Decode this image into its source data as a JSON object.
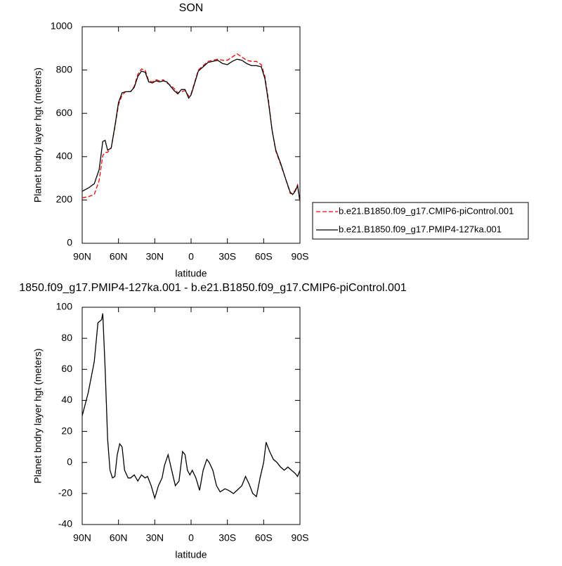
{
  "chart_data": [
    {
      "type": "line",
      "title": "SON",
      "x_label": "latitude",
      "y_label": "Planet bndry layer hgt (meters)",
      "xlim": [
        90,
        -90
      ],
      "xticks": [
        {
          "value": 90,
          "label": "90N"
        },
        {
          "value": 60,
          "label": "60N"
        },
        {
          "value": 30,
          "label": "30N"
        },
        0,
        {
          "value": -30,
          "label": "30S"
        },
        {
          "value": -60,
          "label": "60S"
        },
        {
          "value": -90,
          "label": "90S"
        }
      ],
      "ylim": [
        0,
        1000
      ],
      "yticks": [
        0,
        200,
        400,
        600,
        800,
        1000
      ],
      "legend": "right",
      "x": [
        90,
        85,
        80,
        76,
        73,
        71,
        69,
        66,
        63,
        60,
        57,
        54,
        50,
        47,
        44,
        41,
        38,
        35,
        32,
        29,
        26,
        23,
        20,
        17,
        14,
        11,
        8,
        5,
        2,
        0,
        -3,
        -6,
        -10,
        -14,
        -18,
        -22,
        -26,
        -30,
        -34,
        -38,
        -42,
        -46,
        -50,
        -54,
        -58,
        -61,
        -64,
        -67,
        -70,
        -74,
        -78,
        -82,
        -84,
        -86,
        -88,
        -90
      ],
      "series": [
        {
          "name": "b.e21.B1850.f09_g17.CMIP6-piControl.001",
          "color": "#ff0000",
          "dash": "dashed",
          "values": [
            210,
            215,
            225,
            290,
            405,
            420,
            420,
            440,
            535,
            640,
            685,
            700,
            700,
            725,
            780,
            805,
            800,
            750,
            745,
            755,
            750,
            755,
            740,
            730,
            715,
            695,
            700,
            705,
            680,
            690,
            745,
            800,
            820,
            840,
            845,
            850,
            845,
            845,
            860,
            875,
            860,
            845,
            840,
            840,
            825,
            770,
            660,
            520,
            425,
            365,
            300,
            230,
            230,
            245,
            270,
            190
          ]
        },
        {
          "name": "b.e21.B1850.f09_g17.PMIP4-127ka.001",
          "color": "#000000",
          "dash": "solid",
          "values": [
            240,
            255,
            275,
            340,
            470,
            475,
            430,
            440,
            540,
            650,
            695,
            700,
            700,
            720,
            770,
            795,
            790,
            745,
            740,
            750,
            745,
            750,
            745,
            725,
            705,
            690,
            710,
            710,
            670,
            685,
            740,
            795,
            815,
            835,
            840,
            845,
            830,
            825,
            840,
            850,
            845,
            830,
            820,
            820,
            815,
            760,
            650,
            520,
            430,
            370,
            300,
            235,
            225,
            240,
            265,
            195
          ]
        }
      ]
    },
    {
      "type": "line",
      "title": "1850.f09_g17.PMIP4-127ka.001 - b.e21.B1850.f09_g17.CMIP6-piControl.001",
      "x_label": "latitude",
      "y_label": "Planet bndry layer hgt (meters)",
      "xlim": [
        90,
        -90
      ],
      "xticks": [
        {
          "value": 90,
          "label": "90N"
        },
        {
          "value": 60,
          "label": "60N"
        },
        {
          "value": 30,
          "label": "30N"
        },
        0,
        {
          "value": -30,
          "label": "30S"
        },
        {
          "value": -60,
          "label": "60S"
        },
        {
          "value": -90,
          "label": "90S"
        }
      ],
      "ylim": [
        -40,
        100
      ],
      "yticks": [
        -40,
        -20,
        0,
        20,
        40,
        60,
        80,
        100
      ],
      "x": [
        90,
        85,
        80,
        77,
        74,
        73,
        71,
        69,
        67,
        65,
        63,
        61,
        59,
        57,
        55,
        52,
        50,
        47,
        44,
        41,
        38,
        36,
        33,
        30,
        27,
        24,
        22,
        19,
        16,
        13,
        10,
        7,
        5,
        3,
        1,
        -1,
        -4,
        -7,
        -10,
        -13,
        -15,
        -18,
        -21,
        -24,
        -28,
        -31,
        -35,
        -38,
        -42,
        -45,
        -48,
        -51,
        -54,
        -57,
        -60,
        -62,
        -65,
        -68,
        -71,
        -74,
        -77,
        -80,
        -83,
        -86,
        -88,
        -90
      ],
      "series": [
        {
          "color": "#000000",
          "dash": "solid",
          "values": [
            30,
            45,
            65,
            90,
            92,
            96,
            60,
            15,
            -5,
            -10,
            -9,
            5,
            12,
            10,
            -5,
            -10,
            -10,
            -8,
            -12,
            -8,
            -10,
            -9,
            -15,
            -23,
            -15,
            -10,
            -2,
            5,
            -5,
            -15,
            -12,
            7,
            5,
            -5,
            -8,
            -5,
            -10,
            -18,
            -5,
            2,
            0,
            -5,
            -15,
            -19,
            -17,
            -18,
            -20,
            -18,
            -15,
            -9,
            -14,
            -20,
            -22,
            -10,
            0,
            13,
            7,
            2,
            0,
            -3,
            -5,
            -3,
            -5,
            -7,
            -9,
            -5
          ]
        }
      ]
    }
  ]
}
